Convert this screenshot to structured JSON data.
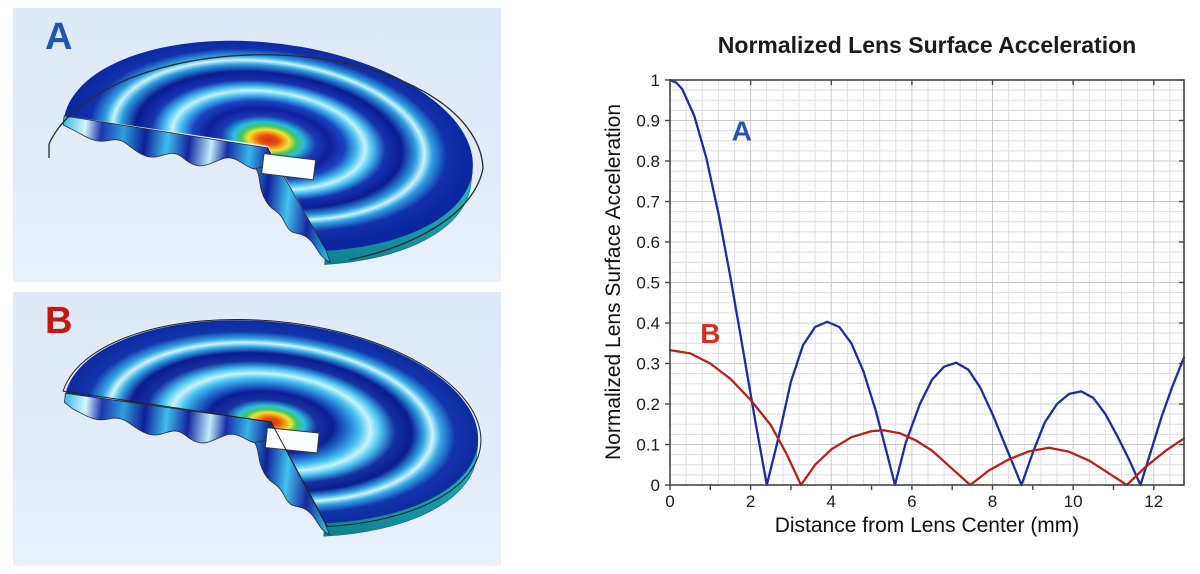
{
  "figures": {
    "a": {
      "label": "A",
      "label_color": "#1d57b0"
    },
    "b": {
      "label": "B",
      "label_color": "#c0190f"
    }
  },
  "chart_data": {
    "type": "line",
    "title": "Normalized Lens Surface Acceleration",
    "xlabel": "Distance from Lens Center (mm)",
    "ylabel": "Normalized Lens Surface Acceleration",
    "xlim": [
      0,
      12.75
    ],
    "ylim": [
      0,
      1
    ],
    "xticks": [
      0,
      2,
      4,
      6,
      8,
      10,
      12
    ],
    "xticklabels": [
      "0",
      "2",
      "4",
      "6",
      "8",
      "10",
      "12"
    ],
    "xminortick_step": 1,
    "yticks": [
      0,
      0.1,
      0.2,
      0.3,
      0.4,
      0.5,
      0.6,
      0.7,
      0.8,
      0.9,
      1
    ],
    "yticklabels": [
      "0",
      "0.1",
      "0.2",
      "0.3",
      "0.4",
      "0.5",
      "0.6",
      "0.7",
      "0.8",
      "0.9",
      "1"
    ],
    "grid": {
      "on": true,
      "x_minor_step": 0.4,
      "y_minor_step": 0.025,
      "minor_color": "#dedede",
      "major_color": "#c9c9c9"
    },
    "frame_color": "#444444",
    "series": [
      {
        "name": "A",
        "color": "#1c2d9c",
        "x": [
          0,
          0.15,
          0.3,
          0.6,
          0.9,
          1.2,
          1.5,
          1.8,
          2.1,
          2.4,
          2.7,
          3.0,
          3.3,
          3.6,
          3.9,
          4.2,
          4.5,
          4.8,
          5.1,
          5.35,
          5.58,
          5.85,
          6.2,
          6.5,
          6.8,
          7.1,
          7.4,
          7.7,
          8.0,
          8.35,
          8.72,
          9.0,
          9.3,
          9.6,
          9.9,
          10.2,
          10.5,
          10.8,
          11.1,
          11.4,
          11.67,
          11.95,
          12.2,
          12.45,
          12.75
        ],
        "y": [
          1.0,
          0.994,
          0.978,
          0.912,
          0.808,
          0.671,
          0.512,
          0.34,
          0.166,
          0,
          0.12,
          0.255,
          0.345,
          0.39,
          0.403,
          0.39,
          0.35,
          0.28,
          0.185,
          0.09,
          0,
          0.105,
          0.2,
          0.26,
          0.292,
          0.302,
          0.285,
          0.24,
          0.175,
          0.09,
          0,
          0.08,
          0.155,
          0.2,
          0.225,
          0.231,
          0.215,
          0.175,
          0.12,
          0.06,
          0,
          0.09,
          0.17,
          0.24,
          0.315
        ]
      },
      {
        "name": "B",
        "color": "#b02419",
        "x": [
          0,
          0.5,
          1.0,
          1.5,
          2.0,
          2.5,
          2.9,
          3.25,
          3.6,
          4.0,
          4.5,
          5.0,
          5.3,
          5.7,
          6.1,
          6.5,
          7.0,
          7.45,
          7.9,
          8.4,
          8.9,
          9.4,
          9.9,
          10.4,
          10.9,
          11.33,
          11.8,
          12.3,
          12.75
        ],
        "y": [
          0.333,
          0.325,
          0.3,
          0.262,
          0.21,
          0.148,
          0.075,
          0,
          0.05,
          0.088,
          0.118,
          0.133,
          0.135,
          0.128,
          0.11,
          0.085,
          0.04,
          0,
          0.035,
          0.063,
          0.083,
          0.092,
          0.082,
          0.06,
          0.028,
          0,
          0.045,
          0.085,
          0.115
        ]
      }
    ],
    "annotations": [
      {
        "text": "A",
        "x": 1.78,
        "y": 0.875,
        "color": "#2a52b5"
      },
      {
        "text": "B",
        "x": 1.0,
        "y": 0.375,
        "color": "#d4311c"
      }
    ]
  }
}
